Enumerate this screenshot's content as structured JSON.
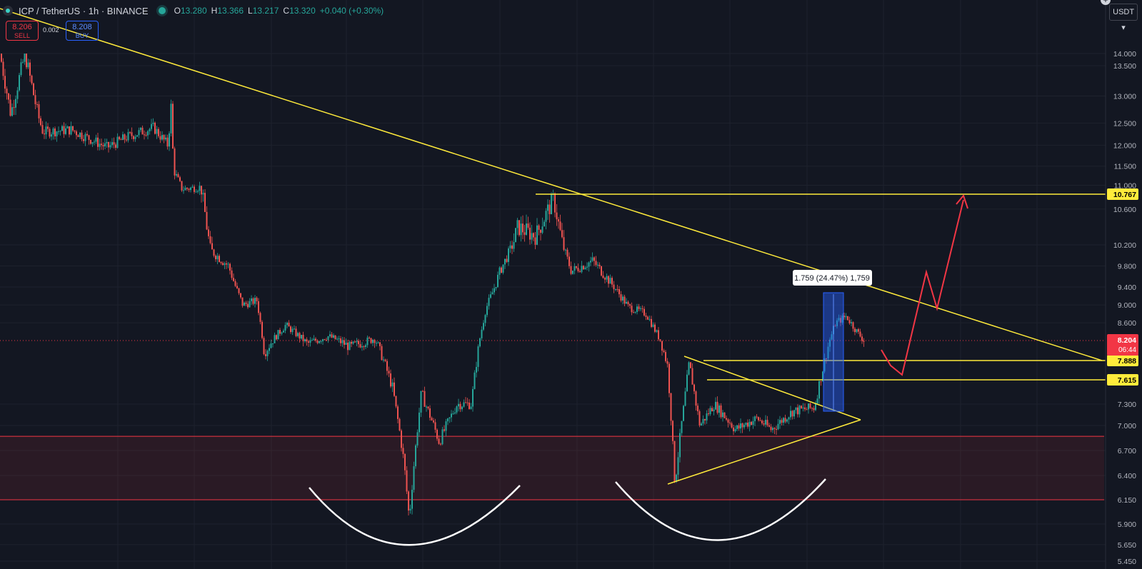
{
  "header": {
    "symbol_title": "ICP / TetherUS · 1h · BINANCE",
    "ohlc": [
      {
        "k": "O",
        "v": "13.280"
      },
      {
        "k": "H",
        "v": "13.366"
      },
      {
        "k": "L",
        "v": "13.217"
      },
      {
        "k": "C",
        "v": "13.320"
      },
      {
        "k": "",
        "v": "+0.040 (+0.30%)"
      }
    ]
  },
  "trade": {
    "sell_price": "8.206",
    "sell_label": "SELL",
    "spread": "0.002",
    "buy_price": "8.208",
    "buy_label": "BUY"
  },
  "currency_button": "USDT",
  "axis_ticks": [
    "14.000",
    "13.500",
    "13.000",
    "12.500",
    "12.000",
    "11.500",
    "11.000",
    "10.600",
    "10.200",
    "9.800",
    "9.400",
    "9.000",
    "8.600",
    "7.300",
    "7.000",
    "6.700",
    "6.400",
    "6.150",
    "5.900",
    "5.650",
    "5.450"
  ],
  "price_tags": [
    {
      "price": 10.767,
      "text": "10.767",
      "color": "#ffeb3b",
      "text_color": "#000000"
    },
    {
      "price": 7.888,
      "text": "7.888",
      "color": "#ffeb3b",
      "text_color": "#000000"
    },
    {
      "price": 7.615,
      "text": "7.615",
      "color": "#ffeb3b",
      "text_color": "#000000"
    }
  ],
  "current_price": {
    "price": 8.204,
    "text": "8.204",
    "countdown": "06:44",
    "color": "#f23645"
  },
  "measure_label": "1.759 (24.47%) 1,759",
  "colors": {
    "background": "#131722",
    "bull": "#26a69a",
    "bear": "#ef5350",
    "trendline": "#ffeb3b",
    "support_zone": "#f23645",
    "projection": "#f23645",
    "measure": "#2962ff"
  },
  "chart_data": {
    "type": "candlestick",
    "symbol": "ICP/USDT",
    "timeframe": "1h",
    "exchange": "BINANCE",
    "price_path": [
      [
        0,
        13.7
      ],
      [
        15,
        12.7
      ],
      [
        35,
        13.7
      ],
      [
        60,
        12.3
      ],
      [
        100,
        12.35
      ],
      [
        150,
        11.95
      ],
      [
        180,
        12.2
      ],
      [
        215,
        12.4
      ],
      [
        235,
        12.0
      ],
      [
        240,
        12.9
      ],
      [
        243,
        11.4
      ],
      [
        255,
        10.9
      ],
      [
        280,
        10.95
      ],
      [
        295,
        10.1
      ],
      [
        320,
        9.8
      ],
      [
        340,
        9.0
      ],
      [
        360,
        9.1
      ],
      [
        370,
        8.0
      ],
      [
        400,
        8.55
      ],
      [
        430,
        8.15
      ],
      [
        460,
        8.3
      ],
      [
        490,
        8.1
      ],
      [
        525,
        8.25
      ],
      [
        550,
        7.5
      ],
      [
        565,
        6.6
      ],
      [
        573,
        5.95
      ],
      [
        590,
        7.45
      ],
      [
        615,
        6.8
      ],
      [
        640,
        7.3
      ],
      [
        660,
        7.3
      ],
      [
        680,
        8.9
      ],
      [
        700,
        9.7
      ],
      [
        725,
        10.4
      ],
      [
        750,
        10.3
      ],
      [
        775,
        10.72
      ],
      [
        800,
        9.7
      ],
      [
        830,
        9.9
      ],
      [
        860,
        9.4
      ],
      [
        880,
        8.95
      ],
      [
        905,
        8.8
      ],
      [
        925,
        8.2
      ],
      [
        935,
        7.8
      ],
      [
        945,
        6.3
      ],
      [
        965,
        7.85
      ],
      [
        980,
        7.0
      ],
      [
        1000,
        7.3
      ],
      [
        1030,
        6.95
      ],
      [
        1060,
        7.1
      ],
      [
        1080,
        6.95
      ],
      [
        1110,
        7.2
      ],
      [
        1140,
        7.25
      ],
      [
        1155,
        7.9
      ],
      [
        1170,
        8.6
      ],
      [
        1185,
        8.75
      ],
      [
        1200,
        8.4
      ],
      [
        1210,
        8.2
      ]
    ],
    "support_zone": [
      6.15,
      6.87
    ],
    "horizontal_levels": [
      10.767,
      7.888,
      7.615
    ],
    "current_price": 8.204,
    "measure": {
      "from": 7.2,
      "to": 8.96,
      "change": 1.759,
      "percent": 24.47
    },
    "projection_path": [
      [
        1210,
        8.2
      ],
      [
        1225,
        7.88
      ],
      [
        1240,
        7.7
      ],
      [
        1272,
        9.35
      ],
      [
        1287,
        8.75
      ],
      [
        1322,
        10.75
      ]
    ]
  },
  "patterns": {
    "cup_left": {
      "x1": 425,
      "y1": 670,
      "cx": 560,
      "cy": 840,
      "x2": 715,
      "y2": 668
    },
    "cup_right": {
      "x1": 845,
      "y1": 662,
      "cx": 985,
      "cy": 835,
      "x2": 1135,
      "y2": 658
    }
  }
}
